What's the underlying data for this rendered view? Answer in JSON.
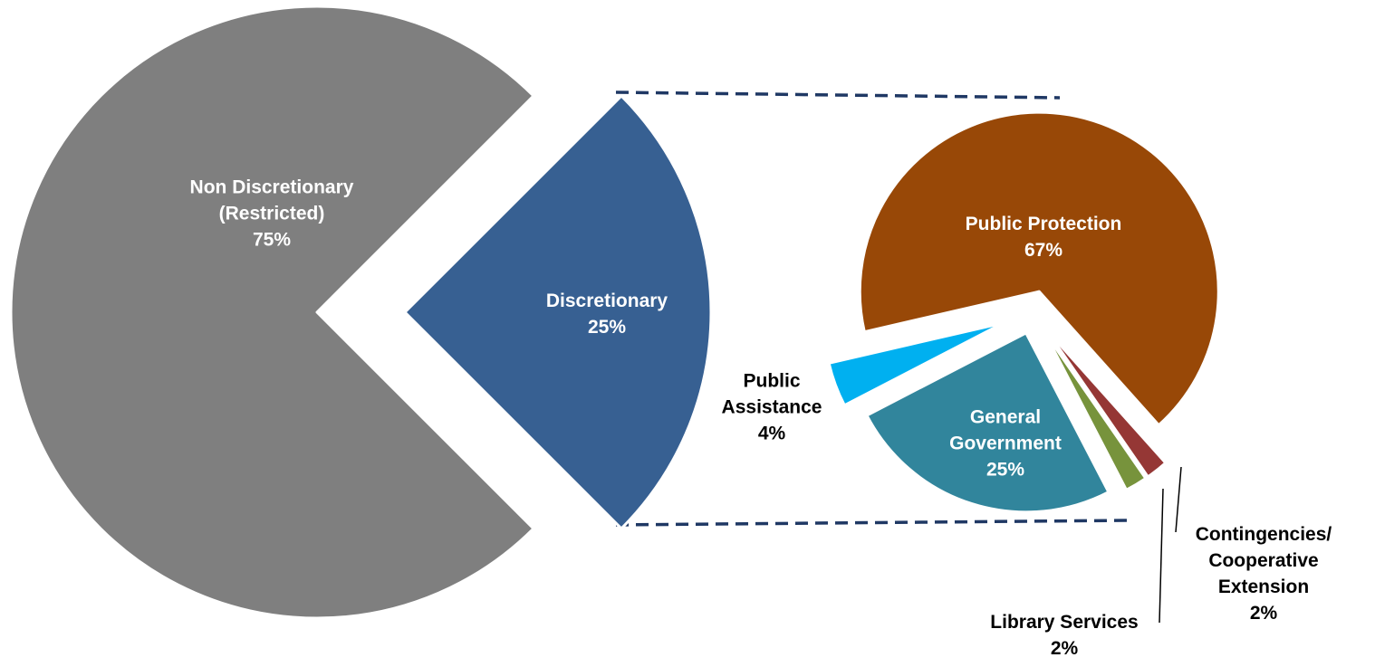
{
  "chart_data": [
    {
      "type": "pie",
      "categories": [
        "Non Discretionary (Restricted)",
        "Discretionary"
      ],
      "values": [
        75,
        25
      ],
      "value_labels": [
        "75%",
        "25%"
      ],
      "colors": [
        "#7f7f7f",
        "#376092"
      ]
    },
    {
      "type": "pie",
      "categories": [
        "Public Protection",
        "Contingencies/ Cooperative Extension",
        "Library Services",
        "General Government",
        "Public Assistance"
      ],
      "values": [
        67,
        2,
        2,
        25,
        4
      ],
      "value_labels": [
        "67%",
        "2%",
        "2%",
        "25%",
        "4%"
      ],
      "colors": [
        "#984807",
        "#953735",
        "#77933c",
        "#31859c",
        "#00b0f0"
      ]
    }
  ]
}
